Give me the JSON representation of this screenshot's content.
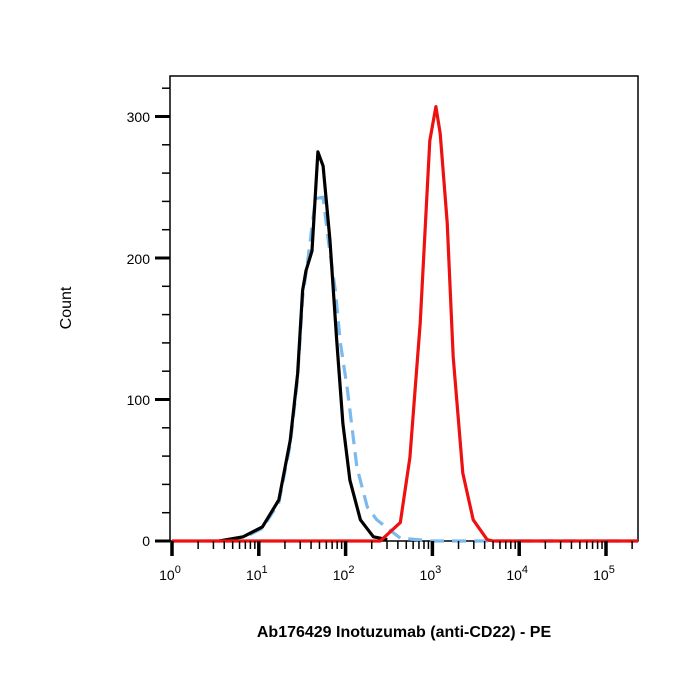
{
  "chart_data": {
    "type": "line",
    "title": "",
    "xlabel": "Ab176429 Inotuzumab (anti-CD22) - PE",
    "ylabel": "Count",
    "xscale": "log",
    "xlim": [
      1,
      234000
    ],
    "ylim": [
      0,
      330
    ],
    "grid": false,
    "legend": "none",
    "x_ticks": [
      {
        "base": "10",
        "exp": "0",
        "value": 1
      },
      {
        "base": "10",
        "exp": "1",
        "value": 10
      },
      {
        "base": "10",
        "exp": "2",
        "value": 100
      },
      {
        "base": "10",
        "exp": "3",
        "value": 1000
      },
      {
        "base": "10",
        "exp": "4",
        "value": 10000
      },
      {
        "base": "10",
        "exp": "5",
        "value": 100000
      }
    ],
    "y_ticks": [
      0,
      100,
      200,
      300
    ],
    "series": [
      {
        "color": "#7cb9ec",
        "style": "dashed",
        "x": [
          2.5,
          3.5,
          7,
          11,
          17,
          23,
          28,
          32,
          37,
          45,
          55,
          63,
          76,
          87,
          105,
          135,
          178,
          229,
          427,
          1000,
          4000,
          234000
        ],
        "y": [
          0,
          0,
          3,
          9,
          27,
          68,
          115,
          172,
          200,
          242,
          243,
          213,
          177,
          140,
          107,
          52,
          24,
          15,
          2,
          0,
          0,
          0
        ]
      },
      {
        "color": "#000000",
        "style": "solid",
        "x": [
          3.5,
          6.6,
          11,
          17,
          23,
          28,
          32,
          35,
          41,
          48,
          55,
          66,
          79,
          93,
          112,
          148,
          209,
          302
        ],
        "y": [
          0,
          3,
          10,
          29,
          71,
          118,
          177,
          191,
          205,
          275,
          265,
          213,
          142,
          83,
          43,
          15,
          3,
          1
        ]
      },
      {
        "color": "#ee1111",
        "style": "solid",
        "x": [
          1,
          251,
          427,
          550,
          724,
          871,
          933,
          1096,
          1230,
          1479,
          1738,
          2239,
          2951,
          4266,
          5000,
          234000
        ],
        "y": [
          0,
          0,
          13,
          59,
          154,
          248,
          283,
          307,
          288,
          225,
          130,
          48,
          15,
          1,
          0,
          0
        ]
      }
    ]
  }
}
